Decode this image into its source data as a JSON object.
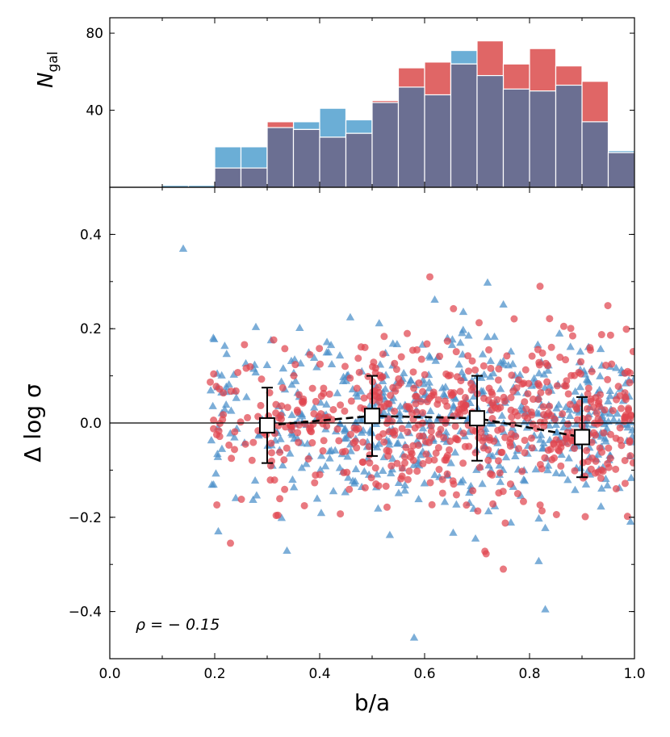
{
  "chart_data": [
    {
      "type": "bar",
      "panel": "histogram",
      "ylabel": "N",
      "ylabel_sub": "gal",
      "xlim": [
        0.0,
        1.0
      ],
      "ylim": [
        0,
        88
      ],
      "yticks": [
        40,
        80
      ],
      "bin_edges": [
        0.1,
        0.15,
        0.2,
        0.25,
        0.3,
        0.35,
        0.4,
        0.45,
        0.5,
        0.55,
        0.6,
        0.65,
        0.7,
        0.75,
        0.8,
        0.85,
        0.9,
        0.95,
        1.0
      ],
      "series": [
        {
          "color": "#6baed6",
          "values": [
            1,
            1,
            21,
            21,
            31,
            34,
            41,
            35,
            44,
            52,
            48,
            71,
            58,
            51,
            50,
            53,
            34,
            19
          ]
        },
        {
          "color": "#e06666",
          "values": [
            0,
            0,
            10,
            10,
            34,
            30,
            26,
            28,
            45,
            62,
            65,
            64,
            76,
            64,
            72,
            63,
            55,
            18
          ]
        }
      ],
      "overlap_color": "#6b6f92"
    },
    {
      "type": "scatter",
      "panel": "scatter",
      "xlabel": "b/a",
      "ylabel": "Δ log σ",
      "xlim": [
        0.0,
        1.0
      ],
      "ylim": [
        -0.5,
        0.5
      ],
      "xticks": [
        "0.0",
        "0.2",
        "0.4",
        "0.6",
        "0.8",
        "1.0"
      ],
      "yticks": [
        "−0.4",
        "−0.2",
        "0.0",
        "0.2",
        "0.4"
      ],
      "annotation": "ρ = − 0.15",
      "reference_line_y": 0.0,
      "series": [
        {
          "marker": "triangle",
          "color": "#4a8fc9",
          "count": 620
        },
        {
          "marker": "circle",
          "color": "#e0454f",
          "count": 600
        }
      ],
      "outliers_blue": [
        [
          0.14,
          0.37
        ],
        [
          0.58,
          -0.455
        ],
        [
          0.83,
          -0.395
        ],
        [
          0.72,
          0.298
        ]
      ],
      "outliers_red": [
        [
          0.61,
          0.31
        ],
        [
          0.82,
          0.29
        ],
        [
          0.75,
          -0.31
        ],
        [
          0.23,
          -0.255
        ]
      ],
      "binned": {
        "x": [
          0.3,
          0.5,
          0.7,
          0.9
        ],
        "y": [
          -0.005,
          0.015,
          0.01,
          -0.03
        ],
        "yerr": [
          0.08,
          0.085,
          0.09,
          0.085
        ],
        "style": "dashed",
        "marker": "open-square"
      }
    }
  ]
}
